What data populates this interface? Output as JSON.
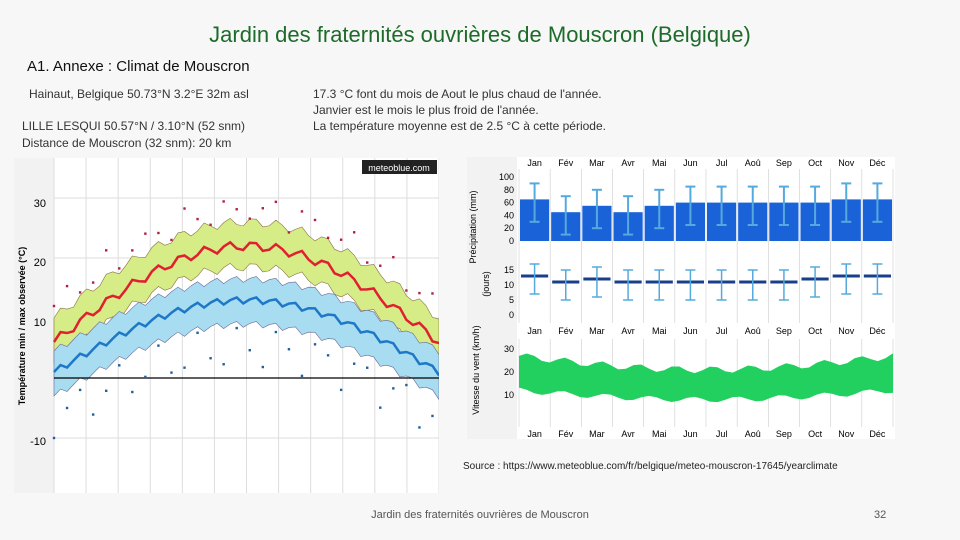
{
  "header": {
    "title": "Jardin des fraternités ouvrières de Mouscron (Belgique)",
    "subtitle": "A1. Annexe : Climat de Mouscron"
  },
  "location": {
    "line1": "Hainaut, Belgique 50.73°N 3.2°E 32m asl",
    "line2": "LILLE LESQUI 50.57°N / 3.10°N (52 snm)",
    "line3": "Distance de Mouscron (32 snm): 20 km"
  },
  "notes": {
    "line1": "17.3 °C font du mois de Aout le plus chaud de l'année.",
    "line2": "Janvier est le mois le plus froid de l'année.",
    "line3": "La température moyenne est de 2.5 °C à cette période."
  },
  "left_chart": {
    "logo": "meteoblue.com",
    "ylabel": "Température min / max observée (°C)",
    "yticks": [
      "30",
      "20",
      "10",
      "-10"
    ],
    "colors": {
      "max_band": "#d6ec86",
      "max_line": "#e02030",
      "min_band": "#a8dcf0",
      "min_line": "#1e78c8"
    }
  },
  "right_chart": {
    "months": [
      "Jan",
      "Fév",
      "Mar",
      "Avr",
      "Mai",
      "Jun",
      "Jul",
      "Aoû",
      "Sep",
      "Oct",
      "Nov",
      "Déc"
    ],
    "precip": {
      "label": "Précipitation (mm)",
      "ticks": [
        "100",
        "80",
        "60",
        "40",
        "20",
        "0"
      ],
      "values": [
        65,
        45,
        55,
        45,
        55,
        60,
        60,
        60,
        60,
        60,
        65,
        65
      ]
    },
    "days": {
      "label": "(jours)",
      "ticks": [
        "15",
        "10",
        "5",
        "0"
      ],
      "values": [
        13,
        11,
        12,
        11,
        11,
        11,
        11,
        11,
        11,
        12,
        13,
        13
      ]
    },
    "wind": {
      "label": "Vitesse du vent (km/h)",
      "ticks": [
        "30",
        "20",
        "10"
      ]
    },
    "colors": {
      "precip": "#1a62d8",
      "days": "#1a3f8a",
      "wind": "#22d060"
    }
  },
  "source": {
    "prefix": "Source : ",
    "link": "https://www.meteoblue.com/fr/belgique/meteo-mouscron-17645/yearclimate"
  },
  "footer": {
    "text": "Jardin des fraternités ouvrières de Mouscron",
    "page": "32"
  }
}
